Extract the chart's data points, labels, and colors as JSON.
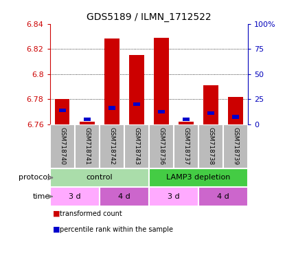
{
  "title": "GDS5189 / ILMN_1712522",
  "samples": [
    "GSM718740",
    "GSM718741",
    "GSM718742",
    "GSM718743",
    "GSM718736",
    "GSM718737",
    "GSM718738",
    "GSM718739"
  ],
  "red_values": [
    6.78,
    6.762,
    6.828,
    6.815,
    6.829,
    6.762,
    6.791,
    6.782
  ],
  "blue_values": [
    6.771,
    6.764,
    6.773,
    6.776,
    6.77,
    6.764,
    6.769,
    6.766
  ],
  "ylim_left": [
    6.76,
    6.84
  ],
  "yticks_left": [
    6.76,
    6.78,
    6.8,
    6.82,
    6.84
  ],
  "yticks_right": [
    0,
    25,
    50,
    75,
    100
  ],
  "bar_width": 0.6,
  "bar_bottom": 6.76,
  "grid_lines": [
    6.78,
    6.8,
    6.82
  ],
  "protocol_groups": [
    {
      "label": "control",
      "start": 0,
      "end": 4,
      "color": "#aaddaa"
    },
    {
      "label": "LAMP3 depletion",
      "start": 4,
      "end": 8,
      "color": "#44cc44"
    }
  ],
  "time_groups": [
    {
      "label": "3 d",
      "start": 0,
      "end": 2,
      "color": "#ffaaff"
    },
    {
      "label": "4 d",
      "start": 2,
      "end": 4,
      "color": "#cc66cc"
    },
    {
      "label": "3 d",
      "start": 4,
      "end": 6,
      "color": "#ffaaff"
    },
    {
      "label": "4 d",
      "start": 6,
      "end": 8,
      "color": "#cc66cc"
    }
  ],
  "legend_items": [
    {
      "label": "transformed count",
      "color": "#CC0000"
    },
    {
      "label": "percentile rank within the sample",
      "color": "#0000CC"
    }
  ],
  "red_color": "#CC0000",
  "blue_color": "#0000CC",
  "left_axis_color": "#CC0000",
  "right_axis_color": "#0000BB",
  "label_area_color": "#BBBBBB",
  "figsize": [
    4.15,
    3.84
  ],
  "dpi": 100
}
